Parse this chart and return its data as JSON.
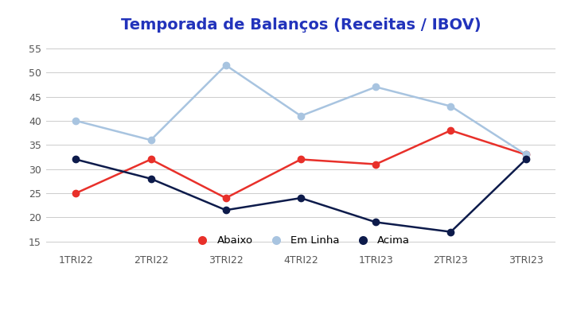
{
  "title": "Temporada de Balanços (Receitas / IBOV)",
  "title_color": "#2233bb",
  "title_fontsize": 14,
  "categories": [
    "1TRI22",
    "2TRI22",
    "3TRI22",
    "4TRI22",
    "1TRI23",
    "2TRI23",
    "3TRI23"
  ],
  "abaixo": [
    25,
    32,
    24,
    32,
    31,
    38,
    33
  ],
  "em_linha": [
    40,
    36,
    51.5,
    41,
    47,
    43,
    33
  ],
  "acima": [
    32,
    28,
    21.5,
    24,
    19,
    17,
    32
  ],
  "abaixo_color": "#e8302a",
  "em_linha_color": "#a8c4e0",
  "acima_color": "#0d1b4b",
  "ylim": [
    13,
    57
  ],
  "yticks": [
    15,
    20,
    25,
    30,
    35,
    40,
    45,
    50,
    55
  ],
  "background_color": "#ffffff",
  "grid_color": "#cccccc",
  "legend_labels": [
    "Abaixo",
    "Em Linha",
    "Acima"
  ],
  "linewidth": 1.8,
  "markersize": 6,
  "tick_fontsize": 9,
  "xlabel_fontsize": 9
}
